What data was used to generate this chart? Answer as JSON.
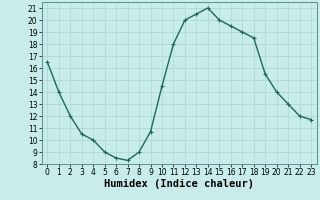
{
  "x": [
    0,
    1,
    2,
    3,
    4,
    5,
    6,
    7,
    8,
    9,
    10,
    11,
    12,
    13,
    14,
    15,
    16,
    17,
    18,
    19,
    20,
    21,
    22,
    23
  ],
  "y": [
    16.5,
    14.0,
    12.0,
    10.5,
    10.0,
    9.0,
    8.5,
    8.3,
    9.0,
    10.7,
    14.5,
    18.0,
    20.0,
    20.5,
    21.0,
    20.0,
    19.5,
    19.0,
    18.5,
    15.5,
    14.0,
    13.0,
    12.0,
    11.7
  ],
  "line_color": "#1a6b5a",
  "marker": "+",
  "background_color": "#c8ecea",
  "grid_color": "#b0d8d4",
  "xlabel": "Humidex (Indice chaleur)",
  "ylim": [
    8,
    21.5
  ],
  "xlim": [
    -0.5,
    23.5
  ],
  "yticks": [
    8,
    9,
    10,
    11,
    12,
    13,
    14,
    15,
    16,
    17,
    18,
    19,
    20,
    21
  ],
  "xticks": [
    0,
    1,
    2,
    3,
    4,
    5,
    6,
    7,
    8,
    9,
    10,
    11,
    12,
    13,
    14,
    15,
    16,
    17,
    18,
    19,
    20,
    21,
    22,
    23
  ],
  "tick_fontsize": 5.5,
  "xlabel_fontsize": 7.5,
  "linewidth": 1.0,
  "markersize": 3.5,
  "markeredgewidth": 0.8
}
